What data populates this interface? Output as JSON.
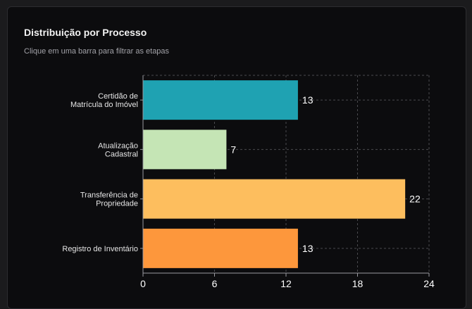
{
  "card": {
    "title": "Distribuição por Processo",
    "subtitle": "Clique em uma barra para filtrar as etapas"
  },
  "chart_data": {
    "type": "bar",
    "orientation": "horizontal",
    "categories": [
      [
        "Certidão de",
        "Matrícula do Imóvel"
      ],
      [
        "Atualização",
        "Cadastral"
      ],
      [
        "Transferência de",
        "Propriedade"
      ],
      [
        "Registro de Inventário"
      ]
    ],
    "values": [
      13,
      7,
      22,
      13
    ],
    "colors": [
      "#1fa2b2",
      "#c5e5b5",
      "#fdbe5e",
      "#fd973c"
    ],
    "xlim": [
      0,
      24
    ],
    "xticks": [
      0,
      6,
      12,
      18,
      24
    ],
    "grid": true,
    "grid_style": "dashed",
    "legend": "none",
    "title": "",
    "xlabel": "",
    "ylabel": ""
  },
  "colors": {
    "card_background": "#0c0c0e",
    "grid": "#4a4a4e",
    "axis": "#9a9aa0"
  }
}
